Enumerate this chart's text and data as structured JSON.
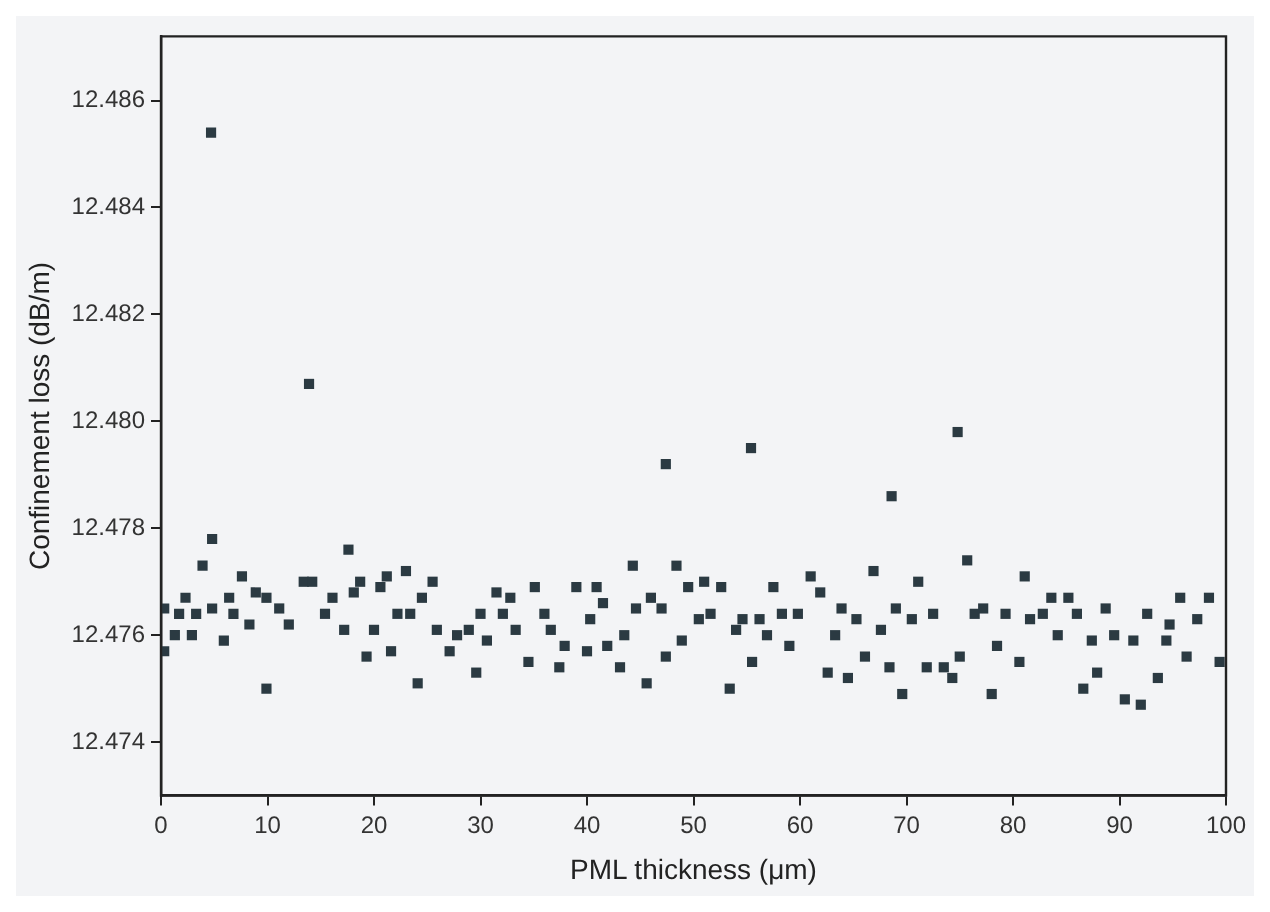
{
  "chart_data": {
    "type": "scatter",
    "xlabel": "PML thickness (μm)",
    "ylabel": "Confinement loss (dB/m)",
    "xlim": [
      0,
      100
    ],
    "xticks": [
      0,
      10,
      20,
      30,
      40,
      50,
      60,
      70,
      80,
      90,
      100
    ],
    "ylim": [
      12.473,
      12.4872
    ],
    "yticks": [
      12.474,
      12.476,
      12.478,
      {
        "value": 12.48,
        "label": "12.480"
      },
      12.482,
      12.484,
      12.486
    ],
    "grid": false,
    "legend": false,
    "marker": "square",
    "series": [
      {
        "color": "#2b3a42",
        "x": [
          0.3,
          0.3,
          1.3,
          1.7,
          2.3,
          2.9,
          3.3,
          3.9,
          4.7,
          4.8,
          4.8,
          5.9,
          6.4,
          6.8,
          7.6,
          8.3,
          8.9,
          9.9,
          9.9,
          11.1,
          12.0,
          13.4,
          13.9,
          14.2,
          15.4,
          16.1,
          17.2,
          17.6,
          18.1,
          18.7,
          19.3,
          20.0,
          20.6,
          21.2,
          21.6,
          22.2,
          23.0,
          23.4,
          24.1,
          24.5,
          25.5,
          25.9,
          27.1,
          27.8,
          28.9,
          29.6,
          30.0,
          30.6,
          31.5,
          32.1,
          32.8,
          33.3,
          34.5,
          35.1,
          36.0,
          36.6,
          37.4,
          37.9,
          39.0,
          40.0,
          40.3,
          40.9,
          41.5,
          41.9,
          43.1,
          43.5,
          44.3,
          44.6,
          45.6,
          46.0,
          47.0,
          47.4,
          47.4,
          48.4,
          48.9,
          49.5,
          50.5,
          51.0,
          51.6,
          52.6,
          53.4,
          54.0,
          54.6,
          55.4,
          55.5,
          56.2,
          56.9,
          57.5,
          58.3,
          59.0,
          59.8,
          61.0,
          61.9,
          62.6,
          63.3,
          63.9,
          64.5,
          65.3,
          66.1,
          66.9,
          67.6,
          68.4,
          68.6,
          69.0,
          69.6,
          70.5,
          71.1,
          71.9,
          72.5,
          73.5,
          74.3,
          74.8,
          75.0,
          75.7,
          76.4,
          77.2,
          78.0,
          78.5,
          79.3,
          80.6,
          81.1,
          81.6,
          82.8,
          83.6,
          84.2,
          85.2,
          86.0,
          86.6,
          87.4,
          87.9,
          88.7,
          89.5,
          90.5,
          91.3,
          92.0,
          92.6,
          93.6,
          94.4,
          94.7,
          95.7,
          96.3,
          97.3,
          98.4,
          99.4
        ],
        "values": [
          12.4765,
          12.4757,
          12.476,
          12.4764,
          12.4767,
          12.476,
          12.4764,
          12.4773,
          12.4854,
          12.4778,
          12.4765,
          12.4759,
          12.4767,
          12.4764,
          12.4771,
          12.4762,
          12.4768,
          12.475,
          12.4767,
          12.4765,
          12.4762,
          12.477,
          12.4807,
          12.477,
          12.4764,
          12.4767,
          12.4761,
          12.4776,
          12.4768,
          12.477,
          12.4756,
          12.4761,
          12.4769,
          12.4771,
          12.4757,
          12.4764,
          12.4772,
          12.4764,
          12.4751,
          12.4767,
          12.477,
          12.4761,
          12.4757,
          12.476,
          12.4761,
          12.4753,
          12.4764,
          12.4759,
          12.4768,
          12.4764,
          12.4767,
          12.4761,
          12.4755,
          12.4769,
          12.4764,
          12.4761,
          12.4754,
          12.4758,
          12.4769,
          12.4757,
          12.4763,
          12.4769,
          12.4766,
          12.4758,
          12.4754,
          12.476,
          12.4773,
          12.4765,
          12.4751,
          12.4767,
          12.4765,
          12.4756,
          12.4792,
          12.4773,
          12.4759,
          12.4769,
          12.4763,
          12.477,
          12.4764,
          12.4769,
          12.475,
          12.4761,
          12.4763,
          12.4795,
          12.4755,
          12.4763,
          12.476,
          12.4769,
          12.4764,
          12.4758,
          12.4764,
          12.4771,
          12.4768,
          12.4753,
          12.476,
          12.4765,
          12.4752,
          12.4763,
          12.4756,
          12.4772,
          12.4761,
          12.4754,
          12.4786,
          12.4765,
          12.4749,
          12.4763,
          12.477,
          12.4754,
          12.4764,
          12.4754,
          12.4752,
          12.4798,
          12.4756,
          12.4774,
          12.4764,
          12.4765,
          12.4749,
          12.4758,
          12.4764,
          12.4755,
          12.4771,
          12.4763,
          12.4764,
          12.4767,
          12.476,
          12.4767,
          12.4764,
          12.475,
          12.4759,
          12.4753,
          12.4765,
          12.476,
          12.4748,
          12.4759,
          12.4747,
          12.4764,
          12.4752,
          12.4759,
          12.4762,
          12.4767,
          12.4756,
          12.4763,
          12.4767,
          12.4755
        ]
      }
    ]
  }
}
